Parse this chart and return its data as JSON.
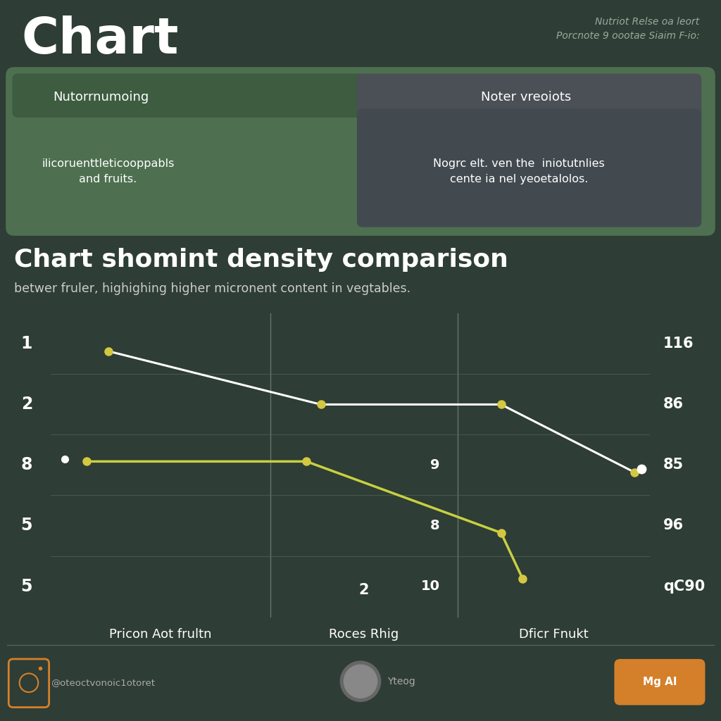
{
  "bg_color": "#2e3d35",
  "title": "Chart",
  "title_fontsize": 52,
  "top_right_text1": "Nutriot Relse oa leort",
  "top_right_text2": "Porcnote 9 oootae Siaim F-io:",
  "table_left_header": "Nutorrnumoing",
  "table_right_header": "Noter vreoiots",
  "table_left_body": "ilicoruenttleticooppabls\nand fruits.",
  "table_right_body": "Nogrc elt. ven the  iniotutnlies\ncente ia nel yeoetalolos.",
  "table_green": "#4e7050",
  "table_green_dark": "#3d5c40",
  "table_gray": "#4a5055",
  "chart_title": "Chart shomint density comparison",
  "chart_subtitle": "betwer fruler, highighing higher micronent content in vegtables.",
  "col_labels": [
    "Pricon Aot frultn",
    "Roces Rhig",
    "Dficr Fnukt"
  ],
  "left_row_nums": [
    "1",
    "2",
    "8",
    "5",
    "5"
  ],
  "middle_row_nums": [
    "",
    "",
    "",
    "",
    "2"
  ],
  "right_row_nums": [
    "116",
    "86",
    "85",
    "96",
    "qC90"
  ],
  "right_mid_nums": [
    "",
    "",
    "9",
    "8",
    "10"
  ],
  "footer_ig_text": "@oteoctvonoic1otoret",
  "footer_center_text": "Yteog",
  "footer_right_text": "Mg AI",
  "footer_ig_color": "#d4802a",
  "footer_right_color": "#d4802a",
  "line_white_color": "white",
  "line_yellow_color": "#c8d040",
  "dot_yellow_color": "#d4c840",
  "dot_white_color": "white"
}
